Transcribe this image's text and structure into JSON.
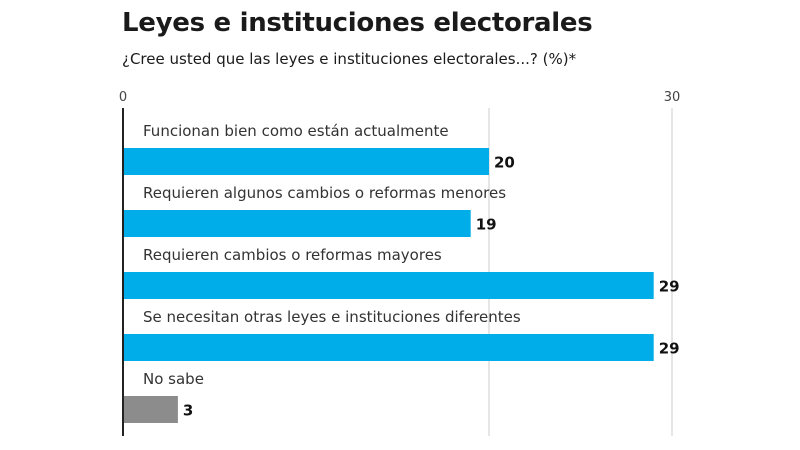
{
  "title": "Leyes e instituciones electorales",
  "subtitle": "¿Cree usted que las leyes e instituciones electorales...?   (%)*",
  "colors": {
    "primary": "#00ade8",
    "secondary": "#8c8c8c",
    "grid": "#cccccc",
    "axis": "#222222"
  },
  "chart_data": {
    "type": "bar",
    "orientation": "horizontal",
    "categories": [
      "Funcionan bien como están actualmente",
      "Requieren algunos cambios o reformas menores",
      "Requieren cambios o reformas mayores",
      "Se necesitan otras leyes e instituciones diferentes",
      "No sabe"
    ],
    "values": [
      20,
      19,
      29,
      29,
      3
    ],
    "value_labels": [
      "20",
      "19",
      "29",
      "29",
      "3"
    ],
    "bar_colors": [
      "#00ade8",
      "#00ade8",
      "#00ade8",
      "#00ade8",
      "#8c8c8c"
    ],
    "xlim": [
      0,
      30
    ],
    "ticks": [
      0,
      30
    ],
    "tick_labels": [
      "0",
      "30"
    ],
    "gridlines": [
      20,
      30
    ],
    "grid": true,
    "legend": "none"
  }
}
